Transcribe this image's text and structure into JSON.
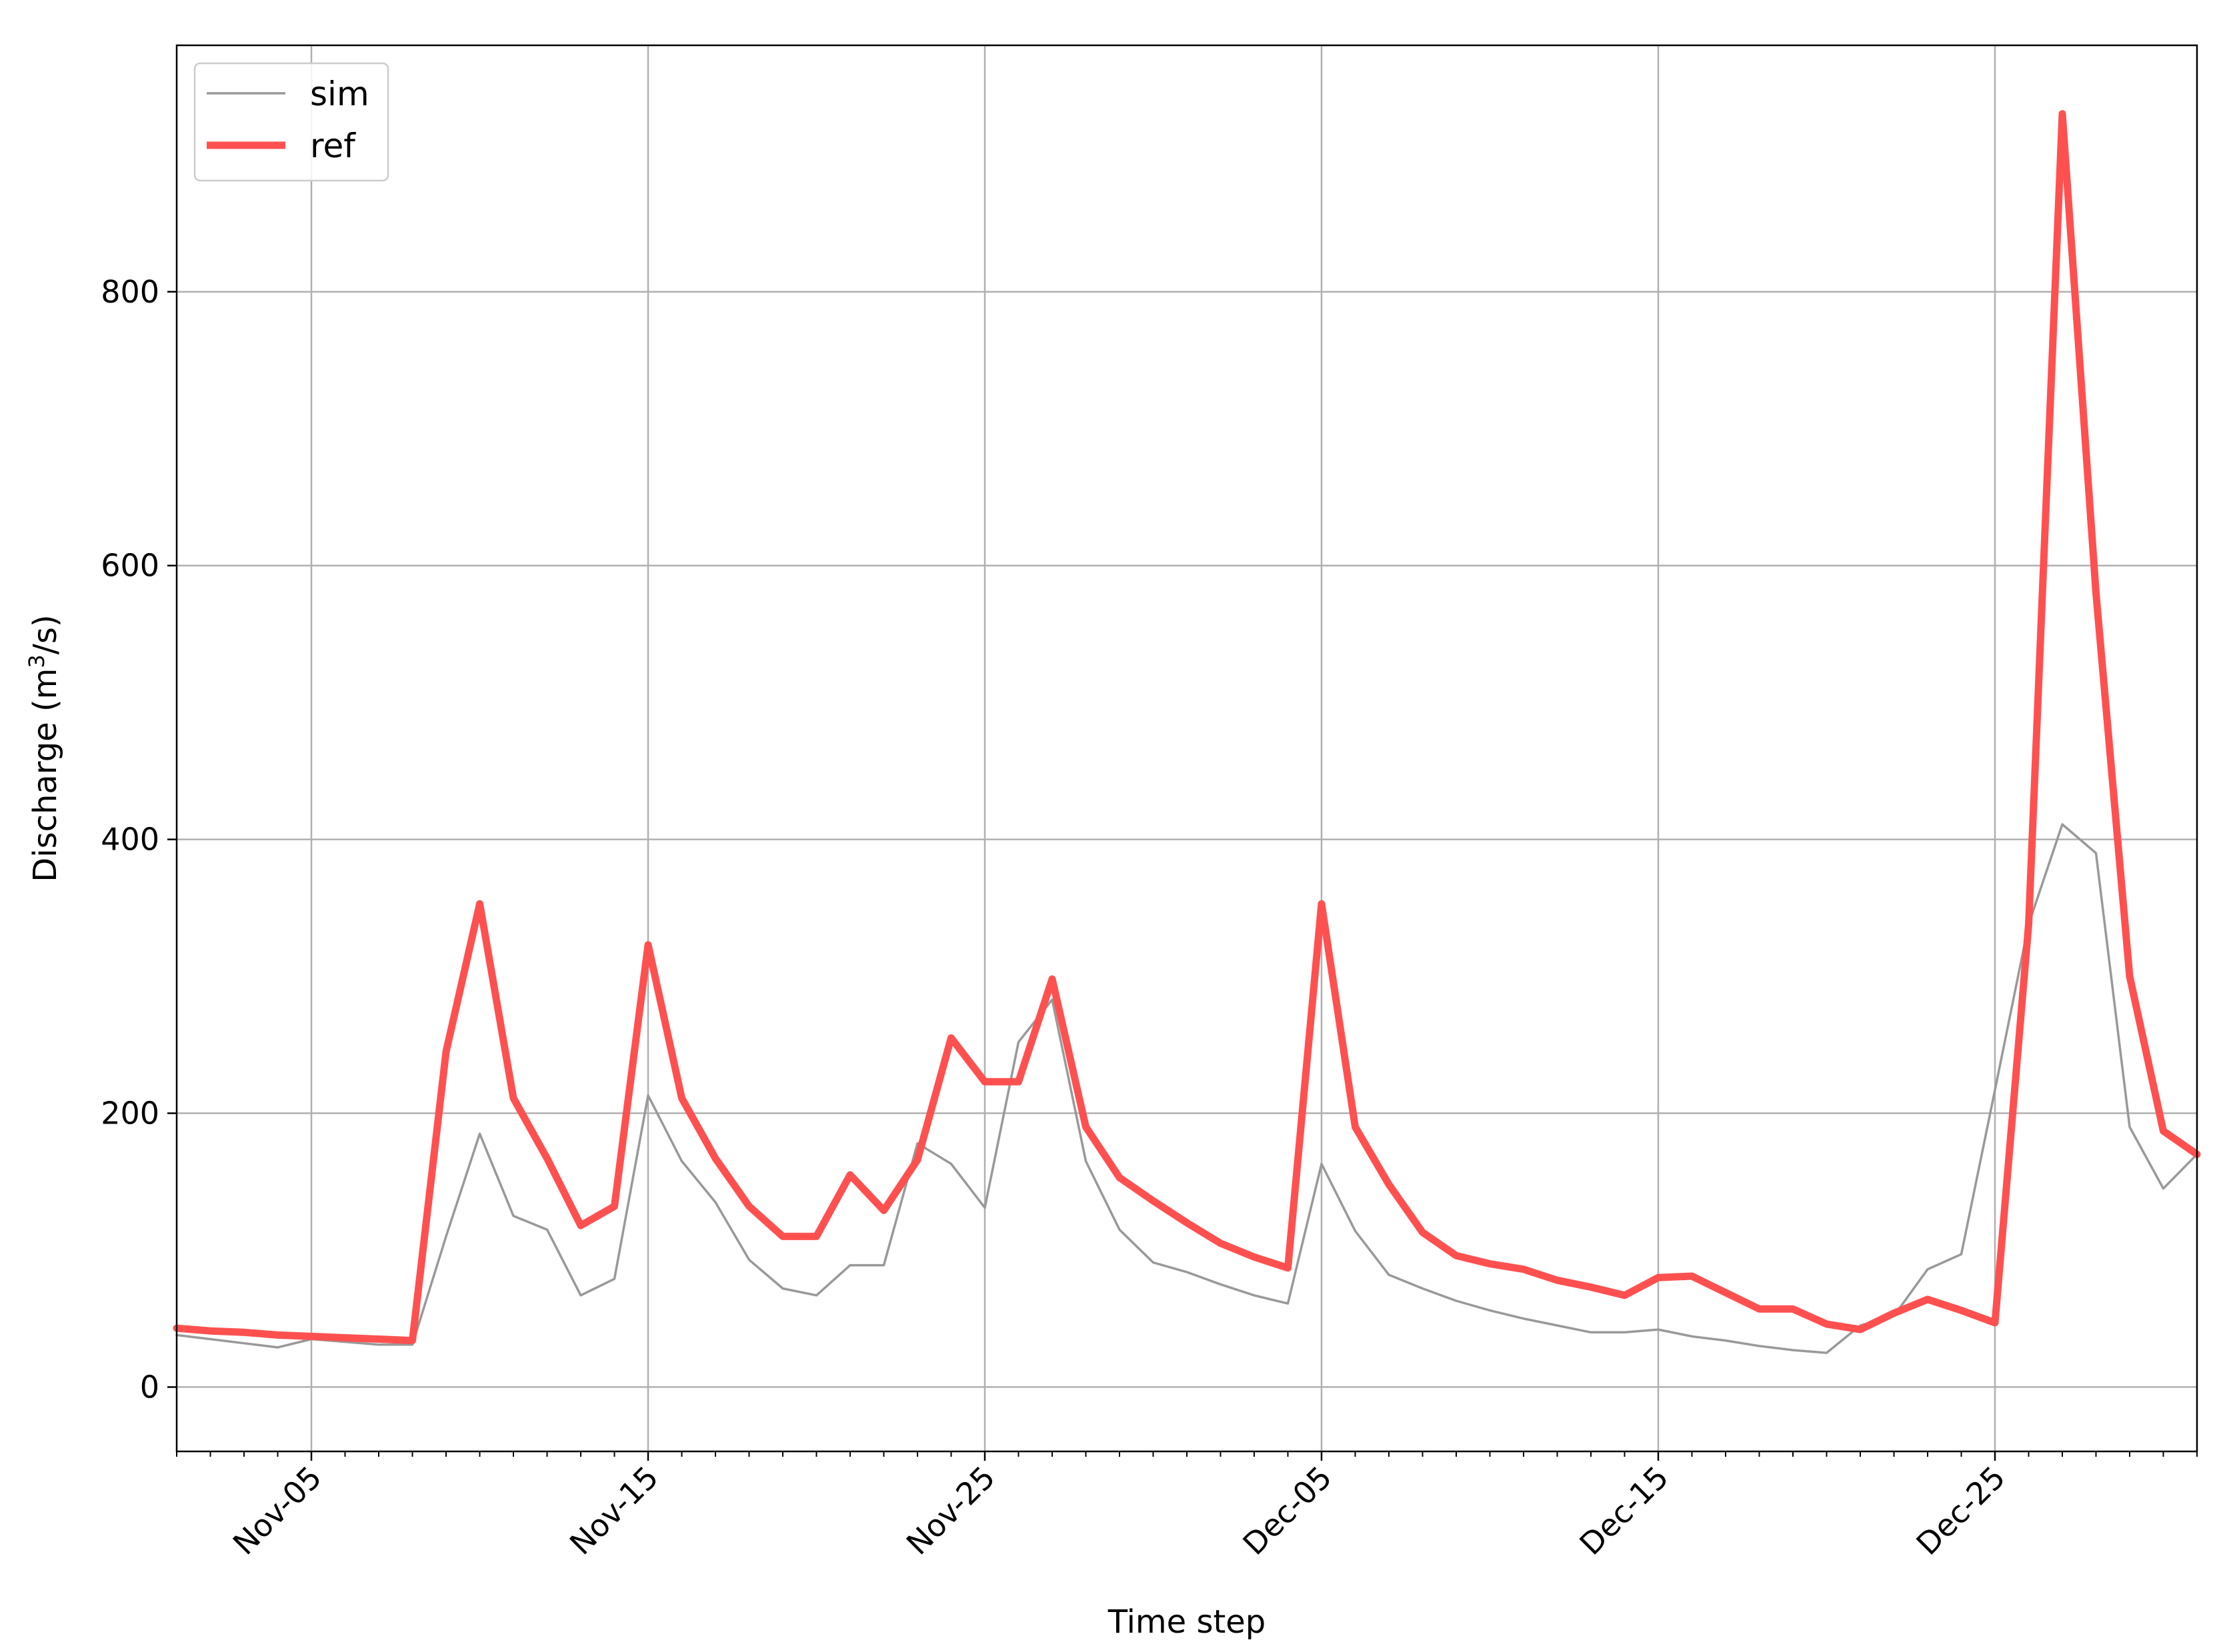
{
  "chart_data": {
    "type": "line",
    "xlabel": "Time step",
    "ylabel": "Discharge (m",
    "ylabel_sup": "3",
    "ylabel_tail": "/s)",
    "x_start": "Nov-01",
    "x_end": "Dec-31",
    "xlim": [
      "Nov-01",
      "Dec-31"
    ],
    "ylim": [
      -47,
      980
    ],
    "x_ticks": [
      "Nov-05",
      "Nov-15",
      "Nov-25",
      "Dec-05",
      "Dec-15",
      "Dec-25"
    ],
    "y_ticks": [
      0,
      200,
      400,
      600,
      800
    ],
    "grid": true,
    "legend_position": "top-left",
    "x": [
      "Nov-01",
      "Nov-02",
      "Nov-03",
      "Nov-04",
      "Nov-05",
      "Nov-06",
      "Nov-07",
      "Nov-08",
      "Nov-09",
      "Nov-10",
      "Nov-11",
      "Nov-12",
      "Nov-13",
      "Nov-14",
      "Nov-15",
      "Nov-16",
      "Nov-17",
      "Nov-18",
      "Nov-19",
      "Nov-20",
      "Nov-21",
      "Nov-22",
      "Nov-23",
      "Nov-24",
      "Nov-25",
      "Nov-26",
      "Nov-27",
      "Nov-28",
      "Nov-29",
      "Nov-30",
      "Dec-01",
      "Dec-02",
      "Dec-03",
      "Dec-04",
      "Dec-05",
      "Dec-06",
      "Dec-07",
      "Dec-08",
      "Dec-09",
      "Dec-10",
      "Dec-11",
      "Dec-12",
      "Dec-13",
      "Dec-14",
      "Dec-15",
      "Dec-16",
      "Dec-17",
      "Dec-18",
      "Dec-19",
      "Dec-20",
      "Dec-21",
      "Dec-22",
      "Dec-23",
      "Dec-24",
      "Dec-25",
      "Dec-26",
      "Dec-27",
      "Dec-28",
      "Dec-29",
      "Dec-30",
      "Dec-31"
    ],
    "series": [
      {
        "name": "sim",
        "color": "#999999",
        "values": [
          38,
          35,
          32,
          29,
          35,
          33,
          31,
          31,
          110,
          185,
          125,
          115,
          67,
          79,
          213,
          165,
          135,
          93,
          72,
          67,
          89,
          89,
          178,
          163,
          131,
          252,
          283,
          165,
          115,
          91,
          84,
          75,
          67,
          61,
          163,
          114,
          82,
          72,
          63,
          56,
          50,
          45,
          40,
          40,
          42,
          37,
          34,
          30,
          27,
          25,
          45,
          52,
          86,
          97,
          217,
          338,
          411,
          390,
          190,
          145,
          170
        ]
      },
      {
        "name": "ref",
        "color": "#ff5050",
        "values": [
          43,
          41,
          40,
          38,
          37,
          36,
          35,
          34,
          245,
          353,
          211,
          167,
          118,
          132,
          323,
          211,
          167,
          132,
          110,
          110,
          155,
          129,
          166,
          255,
          223,
          223,
          298,
          190,
          153,
          136,
          120,
          105,
          95,
          87,
          353,
          190,
          148,
          113,
          96,
          90,
          86,
          78,
          73,
          67,
          80,
          81,
          69,
          57,
          57,
          46,
          42,
          54,
          64,
          56,
          47,
          338,
          930,
          580,
          300,
          187,
          170
        ]
      }
    ]
  }
}
